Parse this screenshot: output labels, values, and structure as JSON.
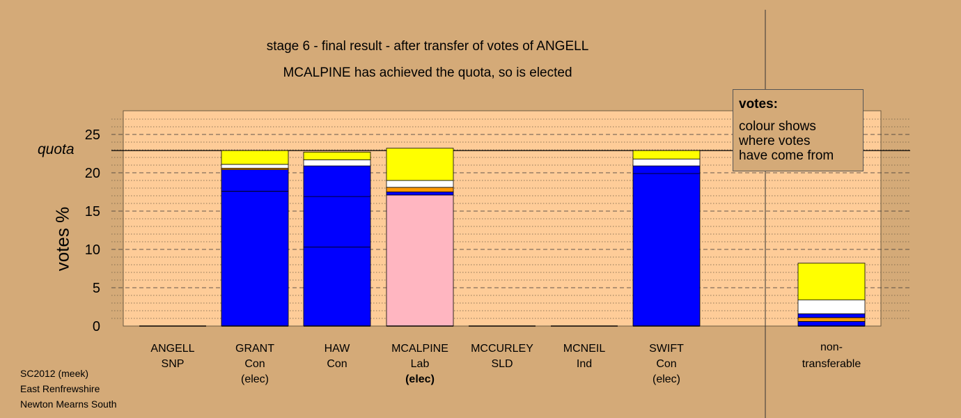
{
  "title_line1": "stage 6 - final result - after transfer of votes of ANGELL",
  "title_line2": "MCALPINE has achieved the quota, so is elected",
  "legend": {
    "title": "votes:",
    "lines": [
      "colour shows",
      "where votes",
      "have come from"
    ]
  },
  "footer": [
    "SC2012 (meek)",
    "East Renfrewshire",
    "Newton Mearns South"
  ],
  "colors": {
    "background": "#d4aa78",
    "plot_area": "#fecc98",
    "Con": "#0000ff",
    "Lab": "#ffb6c1",
    "SNP": "#ffff00",
    "Ind": "#ffffff",
    "SLD": "#ff9900"
  },
  "chart_data": {
    "type": "bar",
    "stacked": true,
    "ylabel": "votes %",
    "ylim": [
      0,
      28
    ],
    "yticks": [
      0,
      5,
      10,
      15,
      20,
      25
    ],
    "minor_grid_step": 1,
    "quota": 22.9,
    "quota_label": "quota",
    "categories": [
      {
        "name": "ANGELL",
        "party": "SNP",
        "elected": ""
      },
      {
        "name": "GRANT",
        "party": "Con",
        "elected": "(elec)"
      },
      {
        "name": "HAW",
        "party": "Con",
        "elected": ""
      },
      {
        "name": "MCALPINE",
        "party": "Lab",
        "elected": "(elec)"
      },
      {
        "name": "MCCURLEY",
        "party": "SLD",
        "elected": ""
      },
      {
        "name": "MCNEIL",
        "party": "Ind",
        "elected": ""
      },
      {
        "name": "SWIFT",
        "party": "Con",
        "elected": "(elec)"
      }
    ],
    "bars": [
      {
        "segments": []
      },
      {
        "segments": [
          {
            "party": "Con",
            "value": 17.6
          },
          {
            "party": "Con",
            "value": 2.8
          },
          {
            "party": "SLD",
            "value": 0.2
          },
          {
            "party": "Ind",
            "value": 0.5
          },
          {
            "party": "SNP",
            "value": 1.8
          }
        ]
      },
      {
        "segments": [
          {
            "party": "Con",
            "value": 10.3
          },
          {
            "party": "Con",
            "value": 6.6
          },
          {
            "party": "Con",
            "value": 4.0
          },
          {
            "party": "Ind",
            "value": 0.8
          },
          {
            "party": "SNP",
            "value": 1.0
          }
        ]
      },
      {
        "segments": [
          {
            "party": "Lab",
            "value": 17.1
          },
          {
            "party": "Con",
            "value": 0.4
          },
          {
            "party": "SLD",
            "value": 0.6
          },
          {
            "party": "Ind",
            "value": 0.9
          },
          {
            "party": "SNP",
            "value": 4.2
          }
        ]
      },
      {
        "segments": []
      },
      {
        "segments": []
      },
      {
        "segments": [
          {
            "party": "Con",
            "value": 19.9
          },
          {
            "party": "Con",
            "value": 1.0
          },
          {
            "party": "Ind",
            "value": 0.9
          },
          {
            "party": "SNP",
            "value": 1.1
          }
        ]
      }
    ],
    "nontransferable": {
      "label_line1": "non-",
      "label_line2": "transferable",
      "segments": [
        {
          "party": "Con",
          "value": 0.6
        },
        {
          "party": "SLD",
          "value": 0.5
        },
        {
          "party": "Con",
          "value": 0.5
        },
        {
          "party": "Ind",
          "value": 1.8
        },
        {
          "party": "SNP",
          "value": 4.8
        }
      ]
    }
  }
}
